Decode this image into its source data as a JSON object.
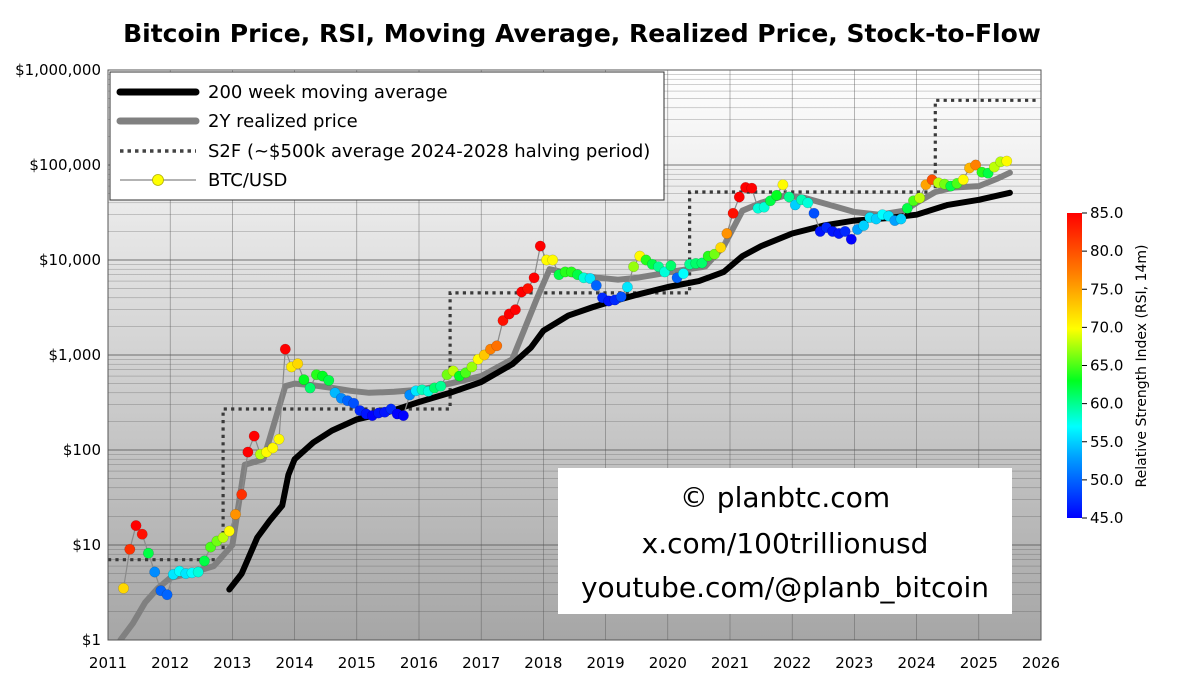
{
  "chart_data": {
    "type": "line",
    "title": "Bitcoin Price, RSI, Moving Average, Realized Price, Stock-to-Flow",
    "xlim": [
      2011,
      2026
    ],
    "ylim": [
      1,
      1000000
    ],
    "yscale": "log",
    "x_ticks": [
      "2011",
      "2012",
      "2013",
      "2014",
      "2015",
      "2016",
      "2017",
      "2018",
      "2019",
      "2020",
      "2021",
      "2022",
      "2023",
      "2024",
      "2025",
      "2026"
    ],
    "y_ticks": [
      {
        "value": 1000000,
        "label": "$1,000,000"
      },
      {
        "value": 100000,
        "label": "$100,000"
      },
      {
        "value": 10000,
        "label": "$10,000"
      },
      {
        "value": 1000,
        "label": "$1,000"
      },
      {
        "value": 100,
        "label": "$100"
      },
      {
        "value": 10,
        "label": "$10"
      },
      {
        "value": 1,
        "label": "$1"
      }
    ],
    "legend": {
      "position": "top-left",
      "entries": [
        {
          "label": "200 week moving average",
          "style": "thick-black"
        },
        {
          "label": "2Y realized price",
          "style": "thick-gray"
        },
        {
          "label": "S2F (~$500k average 2024-2028 halving period)",
          "style": "dotted"
        },
        {
          "label": "BTC/USD",
          "style": "line-dots"
        }
      ]
    },
    "colorbar": {
      "label": "Relative Strength Index (RSI, 14m)",
      "min": 45,
      "max": 85,
      "ticks": [
        "85.0",
        "80.0",
        "75.0",
        "70.0",
        "65.0",
        "60.0",
        "55.0",
        "50.0",
        "45.0"
      ]
    },
    "credits": [
      "© planbtc.com",
      "x.com/100trillionusd",
      "youtube.com/@planb_bitcoin"
    ],
    "series": [
      {
        "name": "200 week moving average",
        "x": [
          2012.95,
          2013.15,
          2013.4,
          2013.6,
          2013.8,
          2013.9,
          2014.0,
          2014.3,
          2014.6,
          2015.0,
          2015.5,
          2016.0,
          2016.5,
          2017.0,
          2017.5,
          2017.8,
          2018.0,
          2018.4,
          2018.8,
          2019.0,
          2019.5,
          2020.0,
          2020.5,
          2020.9,
          2021.2,
          2021.5,
          2022.0,
          2022.5,
          2023.0,
          2023.5,
          2024.0,
          2024.5,
          2025.0,
          2025.5
        ],
        "values": [
          3.4,
          5,
          12,
          18,
          26,
          55,
          80,
          120,
          160,
          210,
          250,
          320,
          400,
          520,
          800,
          1200,
          1800,
          2600,
          3200,
          3500,
          4300,
          5200,
          6000,
          7500,
          11000,
          14000,
          19000,
          23000,
          26000,
          27500,
          30000,
          38000,
          43000,
          51000
        ]
      },
      {
        "name": "2Y realized price",
        "x": [
          2011.2,
          2011.4,
          2011.6,
          2011.8,
          2012.0,
          2012.3,
          2012.7,
          2013.0,
          2013.2,
          2013.5,
          2013.85,
          2014.0,
          2014.3,
          2014.6,
          2014.9,
          2015.2,
          2015.6,
          2016.0,
          2016.5,
          2017.0,
          2017.5,
          2017.9,
          2018.1,
          2018.5,
          2018.9,
          2019.2,
          2019.5,
          2019.8,
          2020.2,
          2020.6,
          2020.9,
          2021.2,
          2021.5,
          2021.9,
          2022.2,
          2022.6,
          2023.0,
          2023.4,
          2023.8,
          2024.0,
          2024.3,
          2024.6,
          2025.0,
          2025.3,
          2025.5
        ],
        "values": [
          1,
          1.5,
          2.5,
          3.5,
          4.5,
          5,
          6,
          10,
          70,
          80,
          470,
          500,
          480,
          450,
          420,
          400,
          410,
          430,
          500,
          600,
          900,
          4000,
          8000,
          7000,
          6500,
          6200,
          6500,
          7000,
          7800,
          8500,
          14000,
          33000,
          40000,
          48000,
          45000,
          38000,
          32000,
          30000,
          33000,
          40000,
          52000,
          58000,
          60000,
          72000,
          83000
        ]
      },
      {
        "name": "S2F",
        "x": [
          2011.0,
          2012.85,
          2012.85,
          2016.5,
          2016.5,
          2020.35,
          2020.35,
          2024.3,
          2024.3,
          2025.95
        ],
        "values": [
          7,
          7,
          270,
          270,
          4500,
          4500,
          52000,
          52000,
          480000,
          480000
        ]
      },
      {
        "name": "BTC/USD",
        "x": [
          2011.25,
          2011.35,
          2011.45,
          2011.55,
          2011.65,
          2011.75,
          2011.85,
          2011.95,
          2012.05,
          2012.15,
          2012.25,
          2012.35,
          2012.45,
          2012.55,
          2012.65,
          2012.75,
          2012.85,
          2012.95,
          2013.05,
          2013.15,
          2013.25,
          2013.35,
          2013.45,
          2013.55,
          2013.65,
          2013.75,
          2013.85,
          2013.95,
          2014.05,
          2014.15,
          2014.25,
          2014.35,
          2014.45,
          2014.55,
          2014.65,
          2014.75,
          2014.85,
          2014.95,
          2015.05,
          2015.15,
          2015.25,
          2015.35,
          2015.45,
          2015.55,
          2015.65,
          2015.75,
          2015.85,
          2015.95,
          2016.05,
          2016.15,
          2016.25,
          2016.35,
          2016.45,
          2016.55,
          2016.65,
          2016.75,
          2016.85,
          2016.95,
          2017.05,
          2017.15,
          2017.25,
          2017.35,
          2017.45,
          2017.55,
          2017.65,
          2017.75,
          2017.85,
          2017.95,
          2018.05,
          2018.15,
          2018.25,
          2018.35,
          2018.45,
          2018.55,
          2018.65,
          2018.75,
          2018.85,
          2018.95,
          2019.05,
          2019.15,
          2019.25,
          2019.35,
          2019.45,
          2019.55,
          2019.65,
          2019.75,
          2019.85,
          2019.95,
          2020.05,
          2020.15,
          2020.25,
          2020.35,
          2020.45,
          2020.55,
          2020.65,
          2020.75,
          2020.85,
          2020.95,
          2021.05,
          2021.15,
          2021.25,
          2021.35,
          2021.45,
          2021.55,
          2021.65,
          2021.75,
          2021.85,
          2021.95,
          2022.05,
          2022.15,
          2022.25,
          2022.35,
          2022.45,
          2022.55,
          2022.65,
          2022.75,
          2022.85,
          2022.95,
          2023.05,
          2023.15,
          2023.25,
          2023.35,
          2023.45,
          2023.55,
          2023.65,
          2023.75,
          2023.85,
          2023.95,
          2024.05,
          2024.15,
          2024.25,
          2024.35,
          2024.45,
          2024.55,
          2024.65,
          2024.75,
          2024.85,
          2024.95,
          2025.05,
          2025.15,
          2025.25,
          2025.35,
          2025.45
        ],
        "values": [
          3.5,
          9,
          16,
          13,
          8.2,
          5.2,
          3.3,
          3,
          4.9,
          5.3,
          5,
          5.1,
          5.2,
          6.8,
          9.5,
          11,
          12,
          14,
          21,
          34,
          95,
          140,
          90,
          95,
          105,
          130,
          1150,
          750,
          810,
          550,
          450,
          620,
          600,
          540,
          400,
          350,
          330,
          310,
          260,
          240,
          230,
          245,
          250,
          270,
          240,
          230,
          380,
          420,
          430,
          415,
          450,
          470,
          620,
          680,
          600,
          650,
          750,
          900,
          1000,
          1150,
          1250,
          2300,
          2700,
          3000,
          4600,
          5000,
          6500,
          14000,
          10000,
          10000,
          7000,
          7500,
          7500,
          7000,
          6500,
          6400,
          5400,
          4000,
          3700,
          3800,
          4100,
          5200,
          8500,
          11000,
          10000,
          9000,
          8500,
          7500,
          8700,
          6500,
          7200,
          9000,
          9200,
          9300,
          11000,
          11500,
          13500,
          19000,
          31000,
          46000,
          58000,
          57000,
          35000,
          36000,
          42000,
          48000,
          62000,
          46000,
          38000,
          43000,
          40000,
          31000,
          20000,
          22000,
          20000,
          19000,
          20000,
          16500,
          21000,
          23000,
          28000,
          27000,
          30000,
          29000,
          26000,
          27000,
          35000,
          42000,
          45000,
          62000,
          70000,
          65000,
          63000,
          60000,
          64000,
          70000,
          93000,
          100000,
          84000,
          82000,
          95000,
          108000,
          110000
        ],
        "rsi": [
          72,
          82,
          85,
          84,
          62,
          52,
          50,
          50,
          56,
          57,
          56,
          57,
          58,
          62,
          65,
          66,
          68,
          70,
          76,
          82,
          85,
          85,
          68,
          70,
          70,
          70,
          86,
          71,
          72,
          63,
          61,
          64,
          63,
          62,
          54,
          52,
          50,
          49,
          47,
          46,
          45,
          46,
          46,
          47,
          45,
          45,
          52,
          56,
          59,
          58,
          61,
          60,
          66,
          68,
          63,
          65,
          67,
          70,
          73,
          77,
          78,
          84,
          85,
          85,
          85,
          84,
          85,
          85,
          70,
          70,
          62,
          64,
          64,
          62,
          58,
          56,
          50,
          47,
          46,
          47,
          49,
          56,
          67,
          70,
          64,
          62,
          60,
          58,
          61,
          50,
          57,
          60,
          61,
          61,
          64,
          66,
          72,
          76,
          84,
          85,
          85,
          85,
          58,
          58,
          62,
          63,
          70,
          60,
          55,
          59,
          58,
          49,
          46,
          47,
          46,
          46,
          47,
          45,
          53,
          55,
          56,
          55,
          57,
          56,
          53,
          55,
          62,
          65,
          68,
          75,
          80,
          68,
          66,
          62,
          65,
          70,
          74,
          77,
          64,
          62,
          68,
          68,
          70
        ]
      }
    ]
  }
}
